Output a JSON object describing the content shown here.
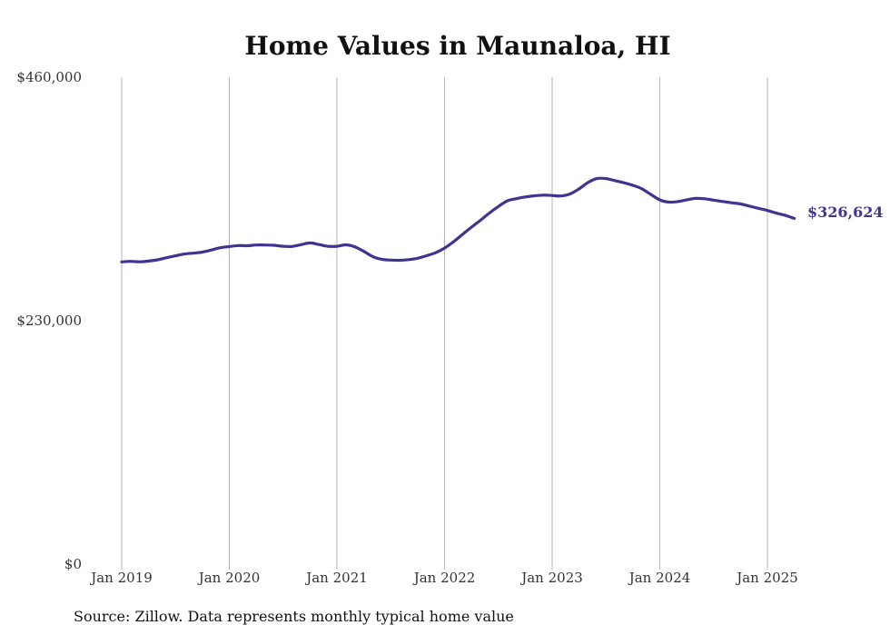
{
  "chart_data": {
    "type": "line",
    "title": "Home Values in Maunaloa, HI",
    "source_note": "Source: Zillow. Data represents monthly typical home value",
    "ylim": [
      0,
      460000
    ],
    "y_ticks": [
      {
        "value": 0,
        "label": "$0"
      },
      {
        "value": 230000,
        "label": "$230,000"
      },
      {
        "value": 460000,
        "label": "$460,000"
      }
    ],
    "x_ticks": [
      {
        "value": "2019-01",
        "label": "Jan 2019"
      },
      {
        "value": "2020-01",
        "label": "Jan 2020"
      },
      {
        "value": "2021-01",
        "label": "Jan 2021"
      },
      {
        "value": "2022-01",
        "label": "Jan 2022"
      },
      {
        "value": "2023-01",
        "label": "Jan 2023"
      },
      {
        "value": "2024-01",
        "label": "Jan 2024"
      },
      {
        "value": "2025-01",
        "label": "Jan 2025"
      }
    ],
    "grid": "vertical",
    "line_color": "#3d3590",
    "end_label": "$326,624",
    "series": [
      {
        "x": [
          "2019-01",
          "2019-02",
          "2019-03",
          "2019-04",
          "2019-05",
          "2019-06",
          "2019-07",
          "2019-08",
          "2019-09",
          "2019-10",
          "2019-11",
          "2019-12",
          "2020-01",
          "2020-02",
          "2020-03",
          "2020-04",
          "2020-05",
          "2020-06",
          "2020-07",
          "2020-08",
          "2020-09",
          "2020-10",
          "2020-11",
          "2020-12",
          "2021-01",
          "2021-02",
          "2021-03",
          "2021-04",
          "2021-05",
          "2021-06",
          "2021-07",
          "2021-08",
          "2021-09",
          "2021-10",
          "2021-11",
          "2021-12",
          "2022-01",
          "2022-02",
          "2022-03",
          "2022-04",
          "2022-05",
          "2022-06",
          "2022-07",
          "2022-08",
          "2022-09",
          "2022-10",
          "2022-11",
          "2022-12",
          "2023-01",
          "2023-02",
          "2023-03",
          "2023-04",
          "2023-05",
          "2023-06",
          "2023-07",
          "2023-08",
          "2023-09",
          "2023-10",
          "2023-11",
          "2023-12",
          "2024-01",
          "2024-02",
          "2024-03",
          "2024-04",
          "2024-05",
          "2024-06",
          "2024-07",
          "2024-08",
          "2024-09",
          "2024-10",
          "2024-11",
          "2024-12",
          "2025-01",
          "2025-02",
          "2025-03",
          "2025-04"
        ],
        "values": [
          285500,
          286000,
          285600,
          286300,
          287500,
          289500,
          291300,
          293000,
          293800,
          294800,
          296800,
          298900,
          300000,
          301000,
          300800,
          301500,
          301500,
          301200,
          300300,
          300100,
          301800,
          303500,
          301900,
          300300,
          300300,
          301700,
          299800,
          295500,
          290500,
          288000,
          287200,
          287100,
          287700,
          289000,
          291400,
          294200,
          298600,
          304600,
          311500,
          318300,
          324800,
          331700,
          337900,
          343200,
          345300,
          346900,
          348000,
          348600,
          348300,
          347800,
          349700,
          354500,
          360500,
          364300,
          364200,
          362300,
          360300,
          357900,
          354600,
          349300,
          344100,
          342000,
          342500,
          344100,
          345500,
          345200,
          343900,
          342600,
          341400,
          340300,
          338200,
          336200,
          334100,
          331600,
          329500,
          326624
        ]
      }
    ]
  }
}
